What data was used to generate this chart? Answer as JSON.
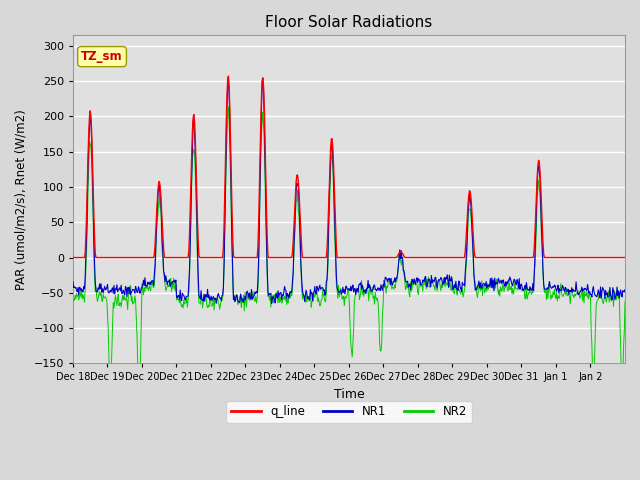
{
  "title": "Floor Solar Radiations",
  "xlabel": "Time",
  "ylabel": "PAR (umol/m2/s), Rnet (W/m2)",
  "ylim": [
    -150,
    315
  ],
  "yticks": [
    -150,
    -100,
    -50,
    0,
    50,
    100,
    150,
    200,
    250,
    300
  ],
  "xtick_labels": [
    "Dec 18",
    "Dec 19",
    "Dec 20",
    "Dec 21",
    "Dec 22",
    "Dec 23",
    "Dec 24",
    "Dec 25",
    "Dec 26",
    "Dec 27",
    "Dec 28",
    "Dec 29",
    "Dec 30",
    "Dec 31",
    "Jan 1",
    "Jan 2"
  ],
  "bg_color": "#d8d8d8",
  "plot_bg_color": "#e0e0e0",
  "grid_color": "#ffffff",
  "legend_entries": [
    "q_line",
    "NR1",
    "NR2"
  ],
  "legend_colors": [
    "#ff0000",
    "#0000cc",
    "#00cc00"
  ],
  "tz_sm_box_color": "#ffffaa",
  "tz_sm_text_color": "#cc0000",
  "n_days": 16,
  "points_per_day": 48,
  "day_peaks_base": [
    210,
    0,
    110,
    205,
    260,
    258,
    120,
    172,
    0,
    10,
    0,
    97,
    0,
    140,
    0,
    0
  ],
  "night_base_nr1": [
    -45,
    -47,
    -35,
    -55,
    -58,
    -54,
    -52,
    -46,
    -44,
    -34,
    -33,
    -41,
    -36,
    -44,
    -46,
    -50
  ],
  "night_base_nr2": [
    -55,
    -60,
    -40,
    -62,
    -62,
    -58,
    -58,
    -55,
    -50,
    -42,
    -38,
    -45,
    -42,
    -50,
    -52,
    -55
  ],
  "nr2_deep_spikes": [
    0,
    -130,
    0,
    0,
    0,
    0,
    0,
    0,
    -90,
    0,
    0,
    0,
    0,
    0,
    0,
    -125
  ],
  "seed_nr1": 101,
  "seed_nr2": 202
}
